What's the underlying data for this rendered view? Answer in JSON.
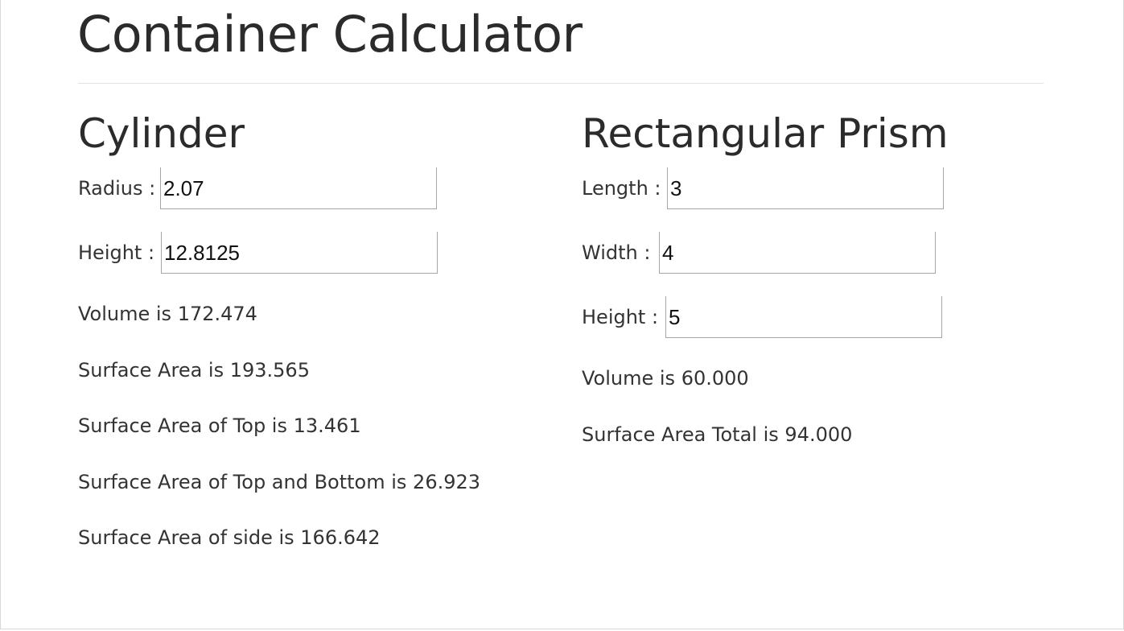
{
  "header": {
    "title": "Container Calculator"
  },
  "cylinder": {
    "title": "Cylinder",
    "fields": {
      "radius": {
        "label": "Radius :",
        "value": "2.07"
      },
      "height": {
        "label": "Height :",
        "value": "12.8125"
      }
    },
    "results": {
      "volume": "Volume is 172.474",
      "surface_area": "Surface Area is 193.565",
      "surface_area_top": "Surface Area of Top is 13.461",
      "surface_area_top_bottom": "Surface Area of Top and Bottom is 26.923",
      "surface_area_side": "Surface Area of side is 166.642"
    }
  },
  "prism": {
    "title": "Rectangular Prism",
    "fields": {
      "length": {
        "label": "Length :",
        "value": "3"
      },
      "width": {
        "label": "Width :",
        "value": "4"
      },
      "height": {
        "label": "Height :",
        "value": "5"
      }
    },
    "results": {
      "volume": "Volume is 60.000",
      "surface_area_total": "Surface Area Total is 94.000"
    }
  }
}
